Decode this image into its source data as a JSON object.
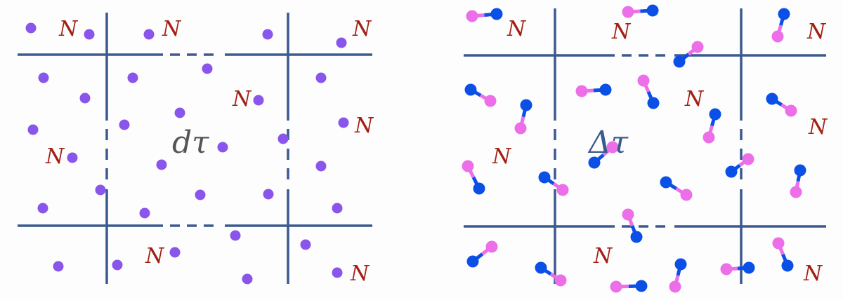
{
  "colors": {
    "grid": "#3b5a8f",
    "n_label": "#a31f14",
    "particle": "#8a55ea",
    "atom_blue": "#0a4fe6",
    "atom_pink": "#ec6ee8",
    "left_center_text": "#555555",
    "right_center_text": "#3b5a8f"
  },
  "left_panel": {
    "center_label": "dτ",
    "n_label": "N"
  },
  "right_panel": {
    "center_label": "Δτ",
    "n_label": "N"
  }
}
